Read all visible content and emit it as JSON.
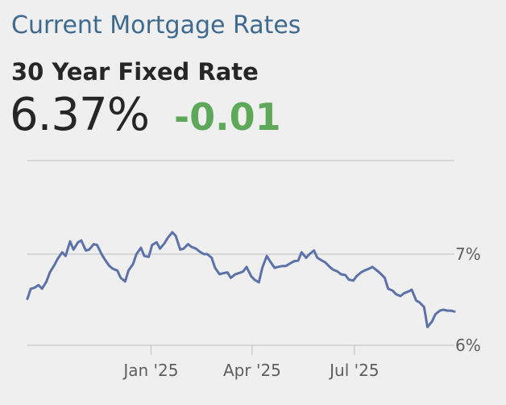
{
  "header": {
    "title": "Current Mortgage Rates",
    "subtitle": "30 Year Fixed Rate",
    "rate": "6.37%",
    "change": "-0.01"
  },
  "colors": {
    "title": "#3d6a8e",
    "change_positive_down": "#5ea85a",
    "series_line": "#5a72a8",
    "gridline": "#bdbdbd"
  },
  "chart_data": {
    "type": "line",
    "title": "",
    "xlabel": "",
    "ylabel": "",
    "x_tick_labels": [
      "Jan '25",
      "Apr '25",
      "Jul '25"
    ],
    "x_ticks": [
      "2025-01-01",
      "2025-04-01",
      "2025-07-01"
    ],
    "y_tick_labels": [
      "7%",
      "6%"
    ],
    "y_ticks": [
      7,
      6
    ],
    "ylim": [
      5.9,
      7.8
    ],
    "xlim": [
      "2024-09-13",
      "2025-09-28"
    ],
    "grid": true,
    "legend": "none",
    "series": [
      {
        "x": [
          "2024-09-13",
          "2024-09-16",
          "2024-09-19",
          "2024-09-23",
          "2024-09-26",
          "2024-09-30",
          "2024-10-03",
          "2024-10-07",
          "2024-10-10",
          "2024-10-14",
          "2024-10-17",
          "2024-10-21",
          "2024-10-24",
          "2024-10-28",
          "2024-10-31",
          "2024-11-04",
          "2024-11-07",
          "2024-11-11",
          "2024-11-14",
          "2024-11-18",
          "2024-11-21",
          "2024-11-25",
          "2024-11-28",
          "2024-12-02",
          "2024-12-05",
          "2024-12-09",
          "2024-12-12",
          "2024-12-16",
          "2024-12-19",
          "2024-12-23",
          "2024-12-26",
          "2024-12-30",
          "2025-01-02",
          "2025-01-06",
          "2025-01-09",
          "2025-01-13",
          "2025-01-16",
          "2025-01-20",
          "2025-01-23",
          "2025-01-27",
          "2025-01-30",
          "2025-02-03",
          "2025-02-06",
          "2025-02-10",
          "2025-02-13",
          "2025-02-17",
          "2025-02-20",
          "2025-02-24",
          "2025-02-27",
          "2025-03-03",
          "2025-03-06",
          "2025-03-10",
          "2025-03-13",
          "2025-03-17",
          "2025-03-20",
          "2025-03-24",
          "2025-03-27",
          "2025-03-31",
          "2025-04-03",
          "2025-04-07",
          "2025-04-10",
          "2025-04-14",
          "2025-04-17",
          "2025-04-21",
          "2025-04-24",
          "2025-04-28",
          "2025-05-01",
          "2025-05-05",
          "2025-05-08",
          "2025-05-12",
          "2025-05-15",
          "2025-05-19",
          "2025-05-22",
          "2025-05-26",
          "2025-05-29",
          "2025-06-02",
          "2025-06-05",
          "2025-06-09",
          "2025-06-12",
          "2025-06-16",
          "2025-06-19",
          "2025-06-23",
          "2025-06-26",
          "2025-06-30",
          "2025-07-03",
          "2025-07-07",
          "2025-07-10",
          "2025-07-14",
          "2025-07-17",
          "2025-07-21",
          "2025-07-24",
          "2025-07-28",
          "2025-07-31",
          "2025-08-04",
          "2025-08-07",
          "2025-08-11",
          "2025-08-14",
          "2025-08-18",
          "2025-08-21",
          "2025-08-25",
          "2025-08-28",
          "2025-09-01",
          "2025-09-04",
          "2025-09-08",
          "2025-09-11",
          "2025-09-15",
          "2025-09-18",
          "2025-09-22",
          "2025-09-25",
          "2025-09-28"
        ],
        "values": [
          6.51,
          6.62,
          6.63,
          6.66,
          6.62,
          6.7,
          6.8,
          6.88,
          6.95,
          7.02,
          6.98,
          7.14,
          7.05,
          7.13,
          7.15,
          7.04,
          7.05,
          7.11,
          7.1,
          7.0,
          6.94,
          6.87,
          6.84,
          6.82,
          6.74,
          6.7,
          6.82,
          6.89,
          7.0,
          7.07,
          6.98,
          6.97,
          7.1,
          7.13,
          7.06,
          7.12,
          7.18,
          7.24,
          7.2,
          7.05,
          7.06,
          7.11,
          7.08,
          7.06,
          7.03,
          7.0,
          7.0,
          6.96,
          6.85,
          6.78,
          6.79,
          6.8,
          6.74,
          6.78,
          6.79,
          6.81,
          6.86,
          6.76,
          6.72,
          6.69,
          6.85,
          6.98,
          6.92,
          6.85,
          6.86,
          6.87,
          6.87,
          6.9,
          6.92,
          6.93,
          7.02,
          6.96,
          7.0,
          7.04,
          6.96,
          6.93,
          6.91,
          6.86,
          6.83,
          6.81,
          6.78,
          6.77,
          6.72,
          6.71,
          6.76,
          6.8,
          6.82,
          6.84,
          6.86,
          6.82,
          6.79,
          6.74,
          6.62,
          6.6,
          6.56,
          6.54,
          6.57,
          6.59,
          6.61,
          6.49,
          6.47,
          6.42,
          6.2,
          6.26,
          6.34,
          6.38,
          6.39,
          6.38,
          6.38,
          6.37
        ]
      }
    ]
  }
}
